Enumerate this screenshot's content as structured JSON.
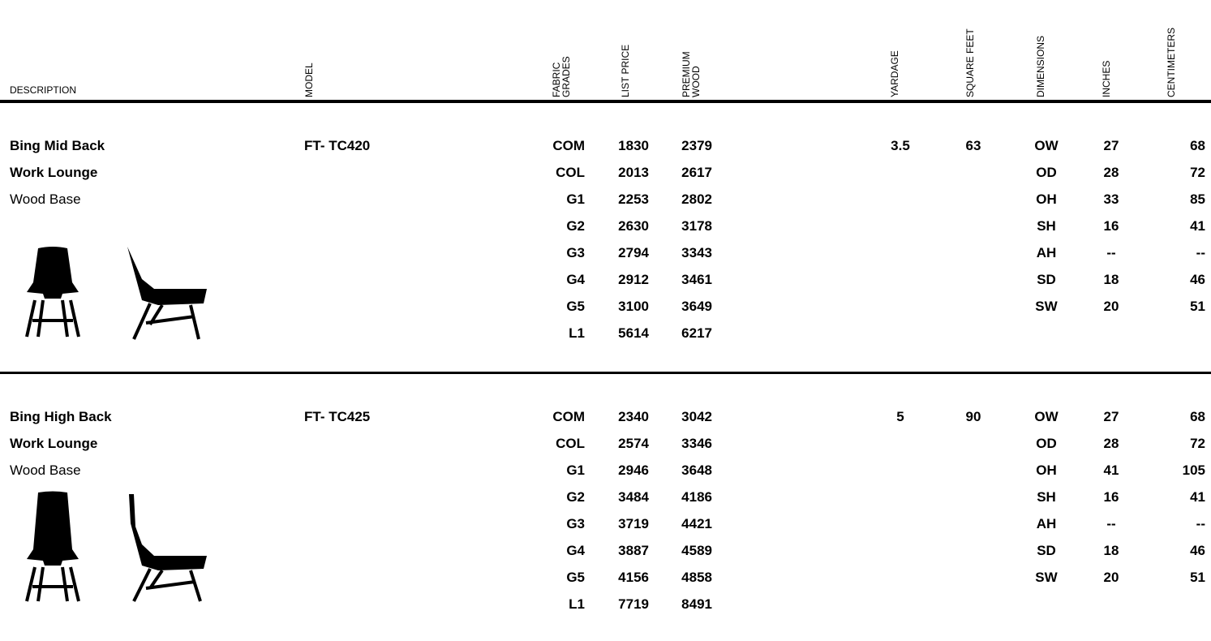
{
  "header": {
    "columns": [
      "DESCRIPTION",
      "MODEL",
      "FABRIC GRADES",
      "LIST PRICE",
      "PREMIUM WOOD",
      "YARDAGE",
      "SQUARE FEET",
      "DIMENSIONS",
      "INCHES",
      "CENTIMETERS"
    ]
  },
  "products": [
    {
      "description": [
        "Bing Mid Back",
        "Work Lounge",
        "Wood Base"
      ],
      "model": "FT- TC420",
      "grades": [
        [
          "COM",
          1830,
          2379
        ],
        [
          "COL",
          2013,
          2617
        ],
        [
          "G1",
          2253,
          2802
        ],
        [
          "G2",
          2630,
          3178
        ],
        [
          "G3",
          2794,
          3343
        ],
        [
          "G4",
          2912,
          3461
        ],
        [
          "G5",
          3100,
          3649
        ],
        [
          "L1",
          5614,
          6217
        ]
      ],
      "yardage": 3.5,
      "square_feet": 63,
      "dimensions": [
        [
          "OW",
          27,
          68
        ],
        [
          "OD",
          28,
          72
        ],
        [
          "OH",
          33,
          85
        ],
        [
          "SH",
          16,
          41
        ],
        [
          "AH",
          "--",
          "--"
        ],
        [
          "SD",
          18,
          46
        ],
        [
          "SW",
          20,
          51
        ]
      ]
    },
    {
      "description": [
        "Bing High Back",
        "Work Lounge",
        "Wood Base"
      ],
      "model": "FT- TC425",
      "grades": [
        [
          "COM",
          2340,
          3042
        ],
        [
          "COL",
          2574,
          3346
        ],
        [
          "G1",
          2946,
          3648
        ],
        [
          "G2",
          3484,
          4186
        ],
        [
          "G3",
          3719,
          4421
        ],
        [
          "G4",
          3887,
          4589
        ],
        [
          "G5",
          4156,
          4858
        ],
        [
          "L1",
          7719,
          8491
        ]
      ],
      "yardage": 5,
      "square_feet": 90,
      "dimensions": [
        [
          "OW",
          27,
          68
        ],
        [
          "OD",
          28,
          72
        ],
        [
          "OH",
          41,
          105
        ],
        [
          "SH",
          16,
          41
        ],
        [
          "AH",
          "--",
          "--"
        ],
        [
          "SD",
          18,
          46
        ],
        [
          "SW",
          20,
          51
        ]
      ]
    }
  ]
}
